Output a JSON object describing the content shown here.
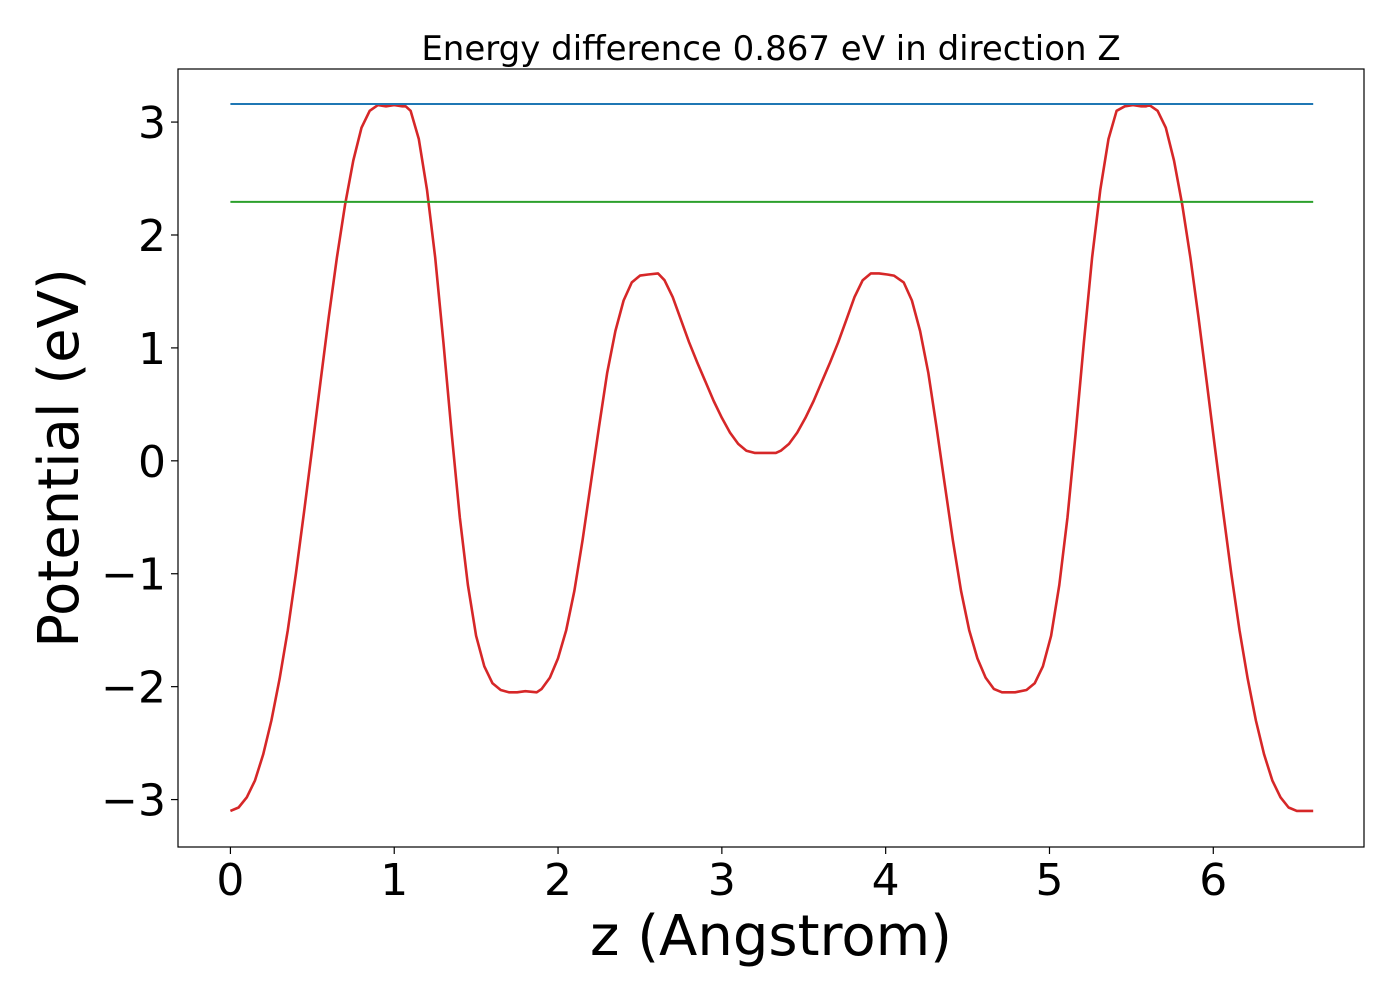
{
  "chart_data": {
    "type": "line",
    "title": "Energy difference 0.867 eV in direction Z",
    "xlabel": "z (Angstrom)",
    "ylabel": "Potential (eV)",
    "xlim": [
      -0.32,
      6.92
    ],
    "ylim": [
      -3.42,
      3.47
    ],
    "xticks": [
      0,
      1,
      2,
      3,
      4,
      5,
      6
    ],
    "yticks": [
      -3,
      -2,
      -1,
      0,
      1,
      2,
      3
    ],
    "ytick_labels": [
      "−3",
      "−2",
      "−1",
      "0",
      "1",
      "2",
      "3"
    ],
    "grid": false,
    "series": [
      {
        "color": "#d62728",
        "x": [
          0,
          0.05,
          0.1,
          0.15,
          0.2,
          0.25,
          0.3,
          0.35,
          0.4,
          0.45,
          0.5,
          0.55,
          0.6,
          0.65,
          0.7,
          0.75,
          0.8,
          0.85,
          0.9,
          0.95,
          1.0,
          1.05,
          1.07,
          1.1,
          1.15,
          1.2,
          1.25,
          1.3,
          1.35,
          1.4,
          1.45,
          1.5,
          1.55,
          1.6,
          1.65,
          1.7,
          1.75,
          1.8,
          1.87,
          1.9,
          1.95,
          2.0,
          2.05,
          2.1,
          2.15,
          2.2,
          2.25,
          2.3,
          2.35,
          2.4,
          2.45,
          2.5,
          2.55,
          2.61,
          2.65,
          2.7,
          2.75,
          2.8,
          2.85,
          2.9,
          2.95,
          3.0,
          3.05,
          3.1,
          3.15,
          3.2,
          3.25,
          3.3,
          3.33,
          3.36,
          3.41,
          3.46,
          3.51,
          3.56,
          3.61,
          3.66,
          3.71,
          3.76,
          3.81,
          3.86,
          3.91,
          3.96,
          4.01,
          4.05,
          4.11,
          4.16,
          4.21,
          4.26,
          4.31,
          4.36,
          4.41,
          4.46,
          4.51,
          4.56,
          4.61,
          4.66,
          4.71,
          4.76,
          4.79,
          4.86,
          4.91,
          4.96,
          5.01,
          5.06,
          5.11,
          5.16,
          5.21,
          5.26,
          5.31,
          5.36,
          5.41,
          5.46,
          5.51,
          5.56,
          5.59,
          5.61,
          5.66,
          5.71,
          5.76,
          5.81,
          5.86,
          5.91,
          5.96,
          6.01,
          6.06,
          6.11,
          6.16,
          6.21,
          6.26,
          6.31,
          6.36,
          6.41,
          6.46,
          6.51,
          6.56,
          6.61
        ],
        "y": [
          -3.1,
          -3.07,
          -2.98,
          -2.83,
          -2.6,
          -2.3,
          -1.93,
          -1.5,
          -1.0,
          -0.45,
          0.12,
          0.7,
          1.27,
          1.8,
          2.27,
          2.66,
          2.95,
          3.1,
          3.15,
          3.14,
          3.15,
          3.14,
          3.14,
          3.1,
          2.85,
          2.4,
          1.8,
          1.05,
          0.25,
          -0.5,
          -1.1,
          -1.55,
          -1.82,
          -1.97,
          -2.03,
          -2.05,
          -2.05,
          -2.04,
          -2.05,
          -2.02,
          -1.92,
          -1.75,
          -1.5,
          -1.15,
          -0.7,
          -0.2,
          0.3,
          0.78,
          1.15,
          1.42,
          1.58,
          1.64,
          1.65,
          1.66,
          1.6,
          1.45,
          1.25,
          1.05,
          0.87,
          0.7,
          0.53,
          0.38,
          0.25,
          0.15,
          0.09,
          0.07,
          0.07,
          0.07,
          0.07,
          0.09,
          0.15,
          0.25,
          0.38,
          0.53,
          0.7,
          0.87,
          1.05,
          1.25,
          1.45,
          1.6,
          1.66,
          1.66,
          1.65,
          1.64,
          1.58,
          1.42,
          1.15,
          0.78,
          0.3,
          -0.2,
          -0.7,
          -1.15,
          -1.5,
          -1.75,
          -1.92,
          -2.02,
          -2.05,
          -2.05,
          -2.05,
          -2.03,
          -1.97,
          -1.82,
          -1.55,
          -1.1,
          -0.5,
          0.25,
          1.05,
          1.8,
          2.4,
          2.85,
          3.1,
          3.14,
          3.15,
          3.14,
          3.14,
          3.15,
          3.1,
          2.95,
          2.66,
          2.27,
          1.8,
          1.27,
          0.7,
          0.12,
          -0.45,
          -1.0,
          -1.5,
          -1.93,
          -2.3,
          -2.6,
          -2.83,
          -2.98,
          -3.07,
          -3.1,
          -3.1,
          -3.1
        ]
      },
      {
        "color": "#1f77b4",
        "x": [
          0,
          6.61
        ],
        "y": [
          3.16,
          3.16
        ]
      },
      {
        "color": "#2ca02c",
        "x": [
          0,
          6.61
        ],
        "y": [
          2.293,
          2.293
        ]
      }
    ]
  }
}
